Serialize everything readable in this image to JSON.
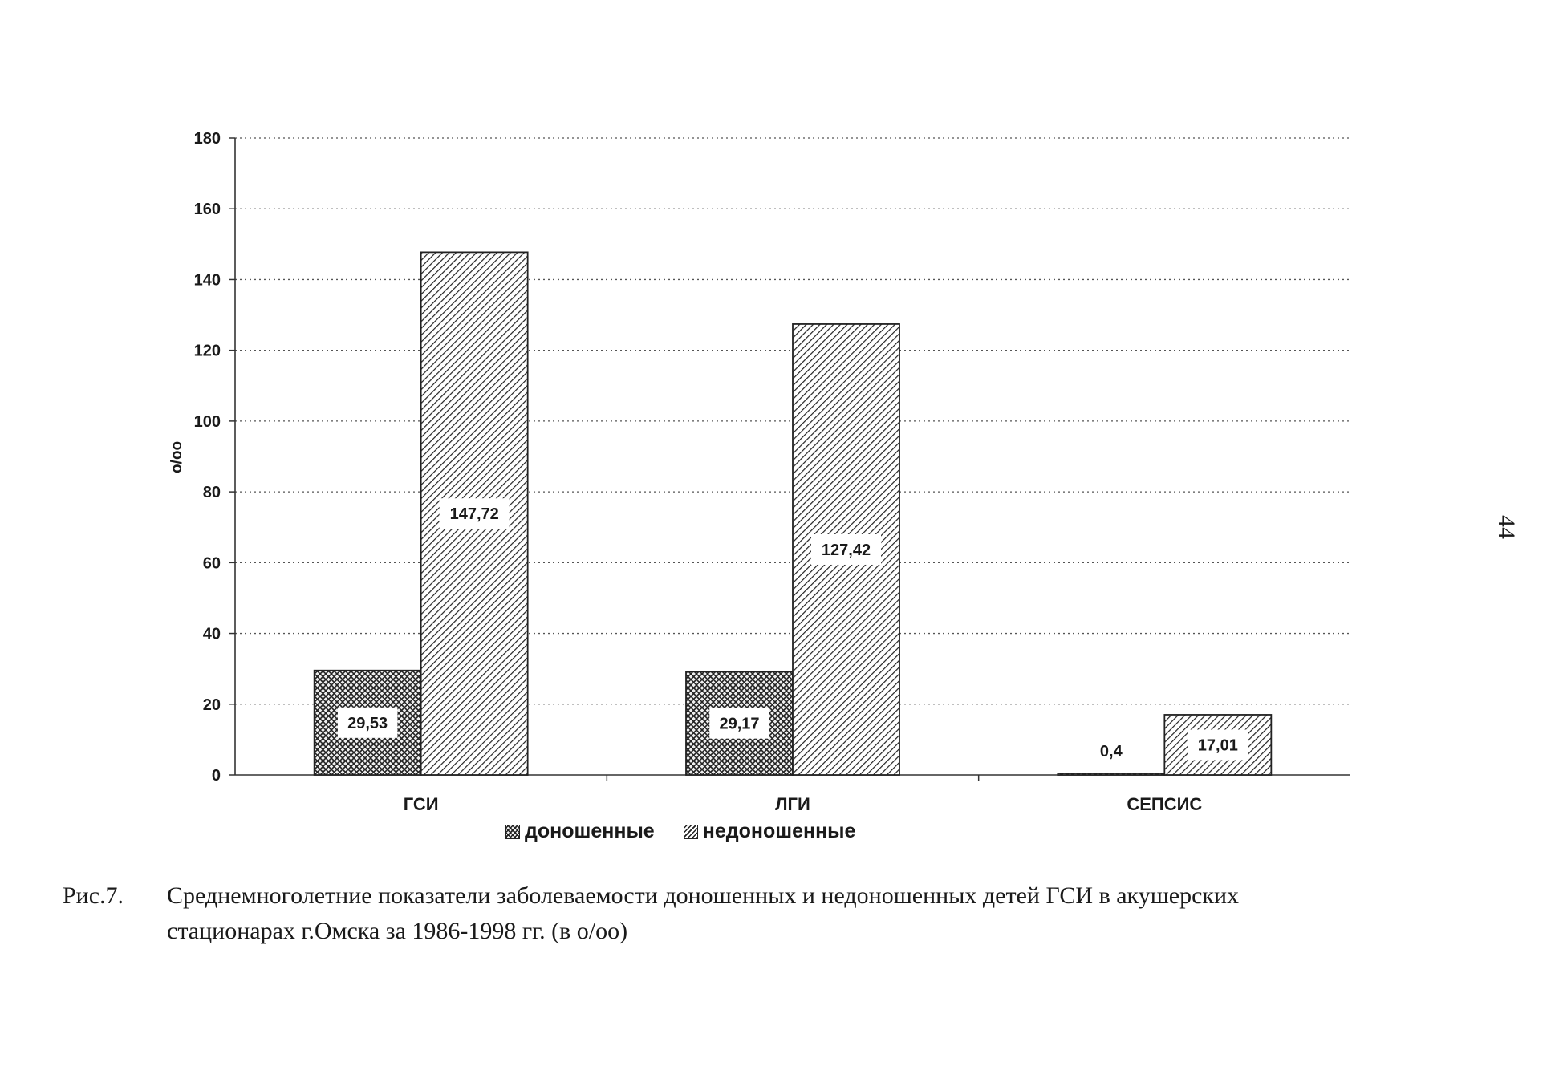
{
  "chart_data": {
    "type": "bar",
    "categories": [
      "ГСИ",
      "ЛГИ",
      "СЕПСИС"
    ],
    "series": [
      {
        "name": "доношенные",
        "values": [
          29.53,
          29.17,
          0.4
        ],
        "labels": [
          "29,53",
          "29,17",
          "0,4"
        ],
        "pattern": "crosshatch"
      },
      {
        "name": "недоношенные",
        "values": [
          147.72,
          127.42,
          17.01
        ],
        "labels": [
          "147,72",
          "127,42",
          "17,01"
        ],
        "pattern": "diagonal"
      }
    ],
    "ylabel": "о/оо",
    "ylim": [
      0,
      180
    ],
    "yticks": [
      0,
      20,
      40,
      60,
      80,
      100,
      120,
      140,
      160,
      180
    ],
    "grid": true,
    "legend_position": "bottom"
  },
  "caption": {
    "number": "Рис.7.",
    "text": "Среднемноголетние показатели заболеваемости доношенных и недоношенных детей ГСИ в акушерских стационарах г.Омска за 1986-1998 гг. (в о/оо)"
  },
  "page_number": "44"
}
